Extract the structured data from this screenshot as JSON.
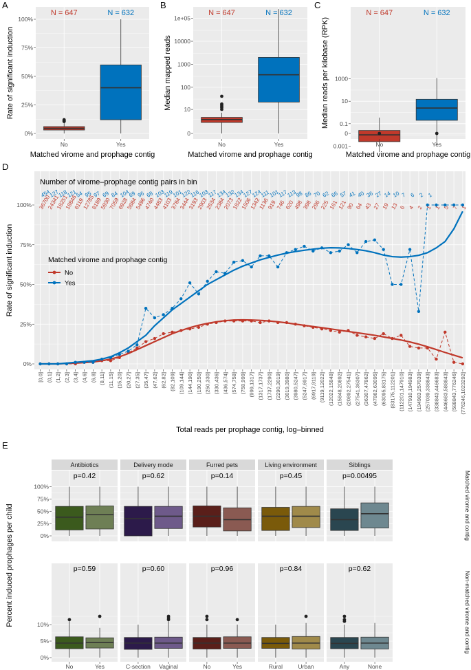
{
  "colors": {
    "no": "#c0392b",
    "yes": "#0072bd",
    "panel_bg": "#ebebeb",
    "grid": "#ffffff",
    "strip": "#d9d9d9"
  },
  "panel_labels": {
    "a": "A",
    "b": "B",
    "c": "C",
    "d": "D",
    "e": "E"
  },
  "chart_data": [
    {
      "panel": "A",
      "type": "boxplot",
      "ylabel": "Rate of significant induction",
      "xlabel": "Matched virome and prophage contig",
      "categories": [
        "No",
        "Yes"
      ],
      "n_labels": [
        "N = 647",
        "N = 632"
      ],
      "yticks": [
        "0%",
        "25%",
        "50%",
        "75%",
        "100%"
      ],
      "ylim": [
        0,
        1
      ],
      "boxes": [
        {
          "name": "No",
          "min": 0.0,
          "q1": 0.03,
          "median": 0.045,
          "q3": 0.06,
          "max": 0.095,
          "outliers": [
            0.105,
            0.11,
            0.115,
            0.12
          ]
        },
        {
          "name": "Yes",
          "min": 0.0,
          "q1": 0.12,
          "median": 0.4,
          "q3": 0.6,
          "max": 1.0,
          "outliers": []
        }
      ]
    },
    {
      "panel": "B",
      "type": "boxplot",
      "ylabel": "Median mapped reads",
      "xlabel": "Matched virome and prophage contig",
      "categories": [
        "No",
        "Yes"
      ],
      "n_labels": [
        "N = 647",
        "N = 632"
      ],
      "yticks": [
        "0",
        "10",
        "100",
        "1000",
        "10000",
        "1e+05"
      ],
      "yscale": "log10(1+x)",
      "ylim_log": [
        0,
        5.5
      ],
      "boxes": [
        {
          "name": "No",
          "min": 0,
          "q1": 2,
          "median": 3,
          "q3": 4,
          "max": 7,
          "outliers": [
            10,
            12,
            14,
            16,
            18,
            40
          ]
        },
        {
          "name": "Yes",
          "min": 0,
          "q1": 22,
          "median": 350,
          "q3": 2000,
          "max": 250000,
          "outliers": []
        }
      ]
    },
    {
      "panel": "C",
      "type": "boxplot",
      "ylabel": "Median reads per kilobase (RPK)",
      "xlabel": "Matched virome and prophage contig",
      "categories": [
        "No",
        "Yes"
      ],
      "n_labels": [
        "N = 647",
        "N = 632"
      ],
      "yticks": [
        "0",
        "0.001",
        "0.1",
        "10",
        "1000"
      ],
      "yscale": "log",
      "boxes": [
        {
          "name": "No",
          "min": 0.0003,
          "q1": 0.0025,
          "median": 0.01,
          "q3": 0.025,
          "max": 0.35,
          "outliers": [
            0
          ]
        },
        {
          "name": "Yes",
          "min": 0.0012,
          "q1": 0.2,
          "median": 2.5,
          "q3": 15,
          "max": 1200,
          "outliers": [
            0
          ]
        }
      ]
    },
    {
      "panel": "D",
      "type": "line",
      "title": "Number of virome–prophage contig pairs in bin",
      "ylabel": "Rate of significant induction",
      "xlabel": "Total reads per prophage contig, log–binned",
      "legend_title": "Matched virome and prophage contig",
      "legend": [
        "No",
        "Yes"
      ],
      "yticks": [
        "0%",
        "25%",
        "50%",
        "75%",
        "100%"
      ],
      "ylim": [
        0,
        1
      ],
      "categories": [
        "[0,0]",
        "(0,1]",
        "(1,2]",
        "(2,3]",
        "(3,4]",
        "(4,6]",
        "(6,8]",
        "(8,11]",
        "(11,15]",
        "(15,20]",
        "(20,27]",
        "(27,35]",
        "(35,47]",
        "(47,62]",
        "(62,82]",
        "(82,109]",
        "(109,144]",
        "(144,190]",
        "(190,250]",
        "(250,330]",
        "(330,436]",
        "(436,574]",
        "(574,758]",
        "(758,999]",
        "(999,1317]",
        "(1317,1737]",
        "(1737,2290]",
        "(2290,3019]",
        "(3019,3980]",
        "(3980,5247]",
        "(5247,6917]",
        "(6917,9119]",
        "(9119,12022]",
        "(12022,15848]",
        "(15848,20892]",
        "(20892,27541]",
        "(27541,36307]",
        "(36307,47862]",
        "(47862,63095]",
        "(63095,83175]",
        "(83175,112201]",
        "(112201,147910]",
        "(147910,194983]",
        "(194983,257039]",
        "(257039,338843]",
        "(338843,446683]",
        "(446683,588843]",
        "(588843,776246]",
        "(776246,1023292]"
      ],
      "counts_yes": [
        "454",
        "127",
        "118",
        "121",
        "54",
        "95",
        "97",
        "69",
        "84",
        "104",
        "69",
        "96",
        "68",
        "103",
        "119",
        "101",
        "122",
        "116",
        "103",
        "117",
        "134",
        "132",
        "134",
        "127",
        "124",
        "111",
        "101",
        "117",
        "113",
        "98",
        "86",
        "70",
        "62",
        "66",
        "57",
        "41",
        "40",
        "36",
        "27",
        "14",
        "10",
        "7",
        "6",
        "2",
        "1",
        "",
        "",
        "",
        ""
      ],
      "counts_no": [
        "36700",
        "24341",
        "18251",
        "18846",
        "6119",
        "12785",
        "8189",
        "5930",
        "7059",
        "6928",
        "5884",
        "5496",
        "4740",
        "4483",
        "4103",
        "3784",
        "3444",
        "3193",
        "2903",
        "2634",
        "2384",
        "2073",
        "1822",
        "1506",
        "1342",
        "1136",
        "919",
        "746",
        "620",
        "498",
        "398",
        "296",
        "225",
        "161",
        "121",
        "90",
        "64",
        "43",
        "27",
        "19",
        "13",
        "6",
        "4",
        "2",
        "1",
        "1",
        "5",
        "7",
        "1"
      ],
      "series": [
        {
          "name": "No",
          "values": [
            0.0,
            0.0,
            0.0,
            0.0,
            0.0,
            0.01,
            0.01,
            0.02,
            0.02,
            0.04,
            0.07,
            0.1,
            0.14,
            0.16,
            0.19,
            0.2,
            0.21,
            0.22,
            0.23,
            0.25,
            0.26,
            0.27,
            0.27,
            0.27,
            0.27,
            0.26,
            0.27,
            0.26,
            0.26,
            0.25,
            0.24,
            0.23,
            0.22,
            0.21,
            0.2,
            0.21,
            0.18,
            0.17,
            0.16,
            0.19,
            0.16,
            0.18,
            0.11,
            0.1,
            0.1,
            0.03,
            0.2,
            0.01,
            0.0
          ],
          "smooth": [
            0.0,
            0.0,
            0.0,
            0.003,
            0.005,
            0.008,
            0.012,
            0.02,
            0.03,
            0.045,
            0.065,
            0.09,
            0.115,
            0.14,
            0.165,
            0.19,
            0.21,
            0.228,
            0.243,
            0.255,
            0.265,
            0.272,
            0.276,
            0.277,
            0.276,
            0.274,
            0.27,
            0.265,
            0.258,
            0.25,
            0.243,
            0.235,
            0.228,
            0.22,
            0.212,
            0.204,
            0.196,
            0.188,
            0.18,
            0.17,
            0.16,
            0.15,
            0.138,
            0.124,
            0.108,
            0.09,
            0.072,
            0.055,
            0.038
          ]
        },
        {
          "name": "Yes",
          "values": [
            0.0,
            0.0,
            0.0,
            0.0,
            0.01,
            0.01,
            0.01,
            0.03,
            0.04,
            0.06,
            0.08,
            0.12,
            0.35,
            0.29,
            0.31,
            0.35,
            0.41,
            0.51,
            0.44,
            0.52,
            0.58,
            0.57,
            0.64,
            0.65,
            0.61,
            0.68,
            0.68,
            0.61,
            0.7,
            0.72,
            0.74,
            0.71,
            0.73,
            0.7,
            0.71,
            0.75,
            0.7,
            0.77,
            0.78,
            0.72,
            0.5,
            0.5,
            0.72,
            0.33,
            1.0,
            1.0,
            1.0,
            1.0,
            1.0
          ],
          "smooth": [
            0.0,
            0.0,
            0.0,
            0.005,
            0.01,
            0.015,
            0.02,
            0.03,
            0.045,
            0.07,
            0.1,
            0.14,
            0.18,
            0.24,
            0.29,
            0.34,
            0.38,
            0.42,
            0.46,
            0.5,
            0.53,
            0.56,
            0.59,
            0.615,
            0.635,
            0.655,
            0.67,
            0.685,
            0.697,
            0.707,
            0.715,
            0.722,
            0.728,
            0.731,
            0.73,
            0.726,
            0.72,
            0.712,
            0.7,
            0.685,
            0.675,
            0.672,
            0.675,
            0.683,
            0.7,
            0.73,
            0.77,
            0.85,
            0.96
          ]
        }
      ]
    },
    {
      "panel": "E",
      "type": "boxplot_facets",
      "ylabel": "Percent induced prophages per child",
      "row_labels": [
        "Matched virome and contig",
        "Non-matched virome and contig"
      ],
      "yticks_top": [
        "0%",
        "25%",
        "50%",
        "75%",
        "100%"
      ],
      "yticks_bottom": [
        "0%",
        "5%",
        "10%"
      ],
      "facets": [
        {
          "title": "Antibiotics",
          "categories": [
            "No",
            "Yes"
          ],
          "colors": [
            "#3b5a1d",
            "#6e7f55"
          ],
          "p_top": "p=0.42",
          "p_bottom": "p=0.59",
          "top": [
            {
              "min": 0.0,
              "q1": 0.12,
              "median": 0.38,
              "q3": 0.6,
              "max": 1.0
            },
            {
              "min": 0.0,
              "q1": 0.14,
              "median": 0.43,
              "q3": 0.61,
              "max": 1.0
            }
          ],
          "bottom": [
            {
              "min": 0.0,
              "q1": 0.027,
              "median": 0.044,
              "q3": 0.063,
              "max": 0.11,
              "outliers": [
                0.115
              ]
            },
            {
              "min": 0.0,
              "q1": 0.029,
              "median": 0.046,
              "q3": 0.06,
              "max": 0.09,
              "outliers": [
                0.125
              ]
            }
          ]
        },
        {
          "title": "Delivery mode",
          "categories": [
            "C-section",
            "Vaginal"
          ],
          "colors": [
            "#2c1a4a",
            "#6e5a8a"
          ],
          "p_top": "p=0.62",
          "p_bottom": "p=0.60",
          "top": [
            {
              "min": 0.0,
              "q1": 0.0,
              "median": 0.35,
              "q3": 0.6,
              "max": 1.0
            },
            {
              "min": 0.0,
              "q1": 0.15,
              "median": 0.4,
              "q3": 0.6,
              "max": 1.0
            }
          ],
          "bottom": [
            {
              "min": 0.0,
              "q1": 0.025,
              "median": 0.044,
              "q3": 0.061,
              "max": 0.1,
              "outliers": []
            },
            {
              "min": 0.0,
              "q1": 0.028,
              "median": 0.044,
              "q3": 0.062,
              "max": 0.11,
              "outliers": [
                0.115,
                0.12,
                0.125
              ]
            }
          ]
        },
        {
          "title": "Furred pets",
          "categories": [
            "No",
            "Yes"
          ],
          "colors": [
            "#5a1f1a",
            "#8a5a52"
          ],
          "p_top": "p=0.14",
          "p_bottom": "p=0.96",
          "top": [
            {
              "min": 0.0,
              "q1": 0.18,
              "median": 0.4,
              "q3": 0.61,
              "max": 1.0
            },
            {
              "min": 0.0,
              "q1": 0.1,
              "median": 0.33,
              "q3": 0.57,
              "max": 1.0
            }
          ],
          "bottom": [
            {
              "min": 0.0,
              "q1": 0.026,
              "median": 0.044,
              "q3": 0.061,
              "max": 0.1,
              "outliers": [
                0.115,
                0.125
              ]
            },
            {
              "min": 0.0,
              "q1": 0.028,
              "median": 0.044,
              "q3": 0.063,
              "max": 0.1,
              "outliers": [
                0.115
              ]
            }
          ]
        },
        {
          "title": "Living environment",
          "categories": [
            "Rural",
            "Urban"
          ],
          "colors": [
            "#7a5a0a",
            "#a08a4a"
          ],
          "p_top": "p=0.45",
          "p_bottom": "p=0.84",
          "top": [
            {
              "min": 0.0,
              "q1": 0.11,
              "median": 0.4,
              "q3": 0.58,
              "max": 1.0
            },
            {
              "min": 0.0,
              "q1": 0.17,
              "median": 0.4,
              "q3": 0.6,
              "max": 1.0
            }
          ],
          "bottom": [
            {
              "min": 0.0,
              "q1": 0.028,
              "median": 0.043,
              "q3": 0.061,
              "max": 0.1,
              "outliers": []
            },
            {
              "min": 0.0,
              "q1": 0.026,
              "median": 0.044,
              "q3": 0.064,
              "max": 0.105,
              "outliers": [
                0.125
              ]
            }
          ]
        },
        {
          "title": "Siblings",
          "categories": [
            "Any",
            "None"
          ],
          "colors": [
            "#2a4650",
            "#6e8890"
          ],
          "p_top": "p=0.00495",
          "p_bottom": "p=0.62",
          "top": [
            {
              "min": 0.0,
              "q1": 0.11,
              "median": 0.33,
              "q3": 0.55,
              "max": 1.0
            },
            {
              "min": 0.0,
              "q1": 0.16,
              "median": 0.45,
              "q3": 0.67,
              "max": 1.0
            }
          ],
          "bottom": [
            {
              "min": 0.0,
              "q1": 0.027,
              "median": 0.043,
              "q3": 0.061,
              "max": 0.1,
              "outliers": [
                0.11,
                0.115,
                0.125
              ]
            },
            {
              "min": 0.0,
              "q1": 0.026,
              "median": 0.044,
              "q3": 0.062,
              "max": 0.105,
              "outliers": []
            }
          ]
        }
      ]
    }
  ]
}
